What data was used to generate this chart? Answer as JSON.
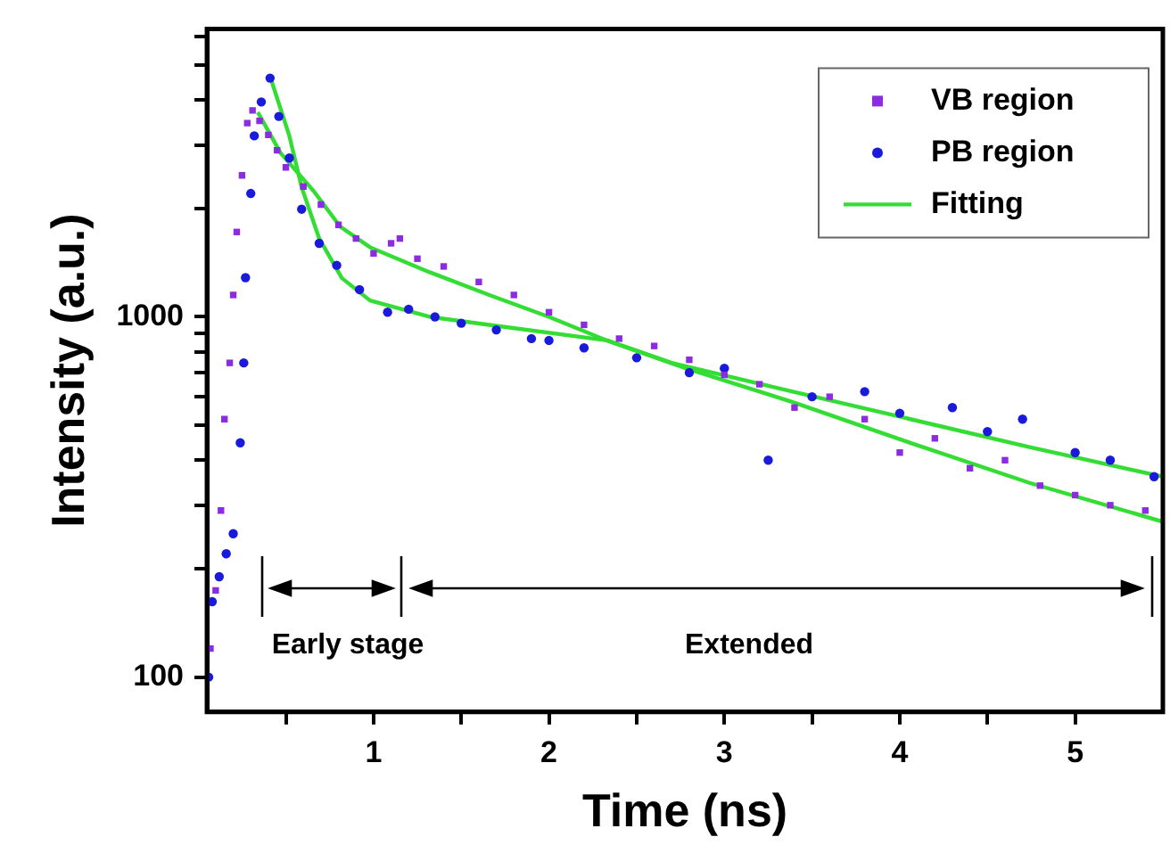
{
  "chart_data": {
    "type": "scatter",
    "xlabel": "Time (ns)",
    "ylabel": "Intensity (a.u.)",
    "log": "y",
    "grid": false,
    "legend": "top right",
    "xlim": [
      0.05,
      5.5
    ],
    "ylim": [
      80,
      6300
    ],
    "xticks": [
      {
        "value": 0.5,
        "label": null
      },
      1,
      {
        "value": 1.5,
        "label": null
      },
      2,
      {
        "value": 2.5,
        "label": null
      },
      3,
      {
        "value": 3.5,
        "label": null
      },
      4,
      {
        "value": 4.5,
        "label": null
      },
      5
    ],
    "yticks": [
      100,
      {
        "value": 200,
        "label": null
      },
      {
        "value": 300,
        "label": null
      },
      {
        "value": 400,
        "label": null
      },
      {
        "value": 500,
        "label": null
      },
      {
        "value": 600,
        "label": null
      },
      {
        "value": 700,
        "label": null
      },
      {
        "value": 800,
        "label": null
      },
      {
        "value": 900,
        "label": null
      },
      1000,
      {
        "value": 2000,
        "label": null
      },
      {
        "value": 3000,
        "label": null
      },
      {
        "value": 4000,
        "label": null
      },
      {
        "value": 5000,
        "label": null
      },
      {
        "value": 6000,
        "label": null
      }
    ],
    "annotations": [
      "Early stage",
      "Extended"
    ],
    "series": [
      {
        "name": "VB region",
        "marker": "square",
        "color": "#8b2be2",
        "x": [
          0.07,
          0.1,
          0.13,
          0.15,
          0.18,
          0.2,
          0.22,
          0.25,
          0.28,
          0.31,
          0.35,
          0.4,
          0.45,
          0.5,
          0.6,
          0.7,
          0.8,
          0.9,
          1.0,
          1.1,
          1.15,
          1.25,
          1.4,
          1.6,
          1.8,
          2.0,
          2.2,
          2.4,
          2.6,
          2.8,
          3.0,
          3.2,
          3.4,
          3.6,
          3.8,
          4.0,
          4.2,
          4.4,
          4.6,
          4.8,
          5.0,
          5.2,
          5.4
        ],
        "values": [
          120,
          174,
          290,
          520,
          745,
          1150,
          1720,
          2470,
          3450,
          3740,
          3500,
          3200,
          2900,
          2600,
          2300,
          2050,
          1800,
          1650,
          1500,
          1600,
          1650,
          1450,
          1380,
          1250,
          1150,
          1030,
          950,
          870,
          830,
          760,
          690,
          650,
          560,
          600,
          520,
          420,
          460,
          380,
          400,
          340,
          320,
          300,
          290
        ]
      },
      {
        "name": "PB region",
        "marker": "circle",
        "color": "#1a1adc",
        "x": [
          0.06,
          0.08,
          0.12,
          0.16,
          0.2,
          0.24,
          0.26,
          0.27,
          0.3,
          0.32,
          0.36,
          0.41,
          0.46,
          0.52,
          0.59,
          0.69,
          0.79,
          0.92,
          1.08,
          1.2,
          1.35,
          1.5,
          1.7,
          1.9,
          2.0,
          2.2,
          2.5,
          2.8,
          3.0,
          3.25,
          3.5,
          3.8,
          4.0,
          4.3,
          4.5,
          4.7,
          5.0,
          5.2,
          5.45
        ],
        "values": [
          100,
          162,
          190,
          220,
          250,
          447,
          745,
          1285,
          2200,
          3180,
          3950,
          4600,
          3600,
          2760,
          1990,
          1600,
          1390,
          1190,
          1030,
          1050,
          1000,
          960,
          920,
          870,
          860,
          820,
          770,
          700,
          720,
          400,
          600,
          620,
          540,
          560,
          480,
          520,
          420,
          400,
          360
        ]
      },
      {
        "name": "Fitting",
        "type": "line",
        "marker": "none",
        "color": "#33dd33",
        "x": [
          0.34,
          0.47,
          0.66,
          0.81,
          0.98,
          1.32,
          1.66,
          2.0,
          2.33,
          2.78,
          3.39,
          4.06,
          4.74,
          5.5
        ],
        "values": [
          3700,
          2850,
          2230,
          1780,
          1560,
          1330,
          1150,
          1000,
          860,
          720,
          580,
          447,
          346,
          270
        ]
      },
      {
        "type": "line",
        "marker": "none",
        "color": "#33dd33",
        "x": [
          0.41,
          0.52,
          0.59,
          0.69,
          0.82,
          0.98,
          1.32,
          1.66,
          2.33,
          2.7,
          3.39,
          4.06,
          4.74,
          5.5
        ],
        "values": [
          4650,
          3180,
          2290,
          1650,
          1280,
          1110,
          1000,
          950,
          860,
          745,
          620,
          520,
          435,
          360
        ]
      }
    ]
  }
}
